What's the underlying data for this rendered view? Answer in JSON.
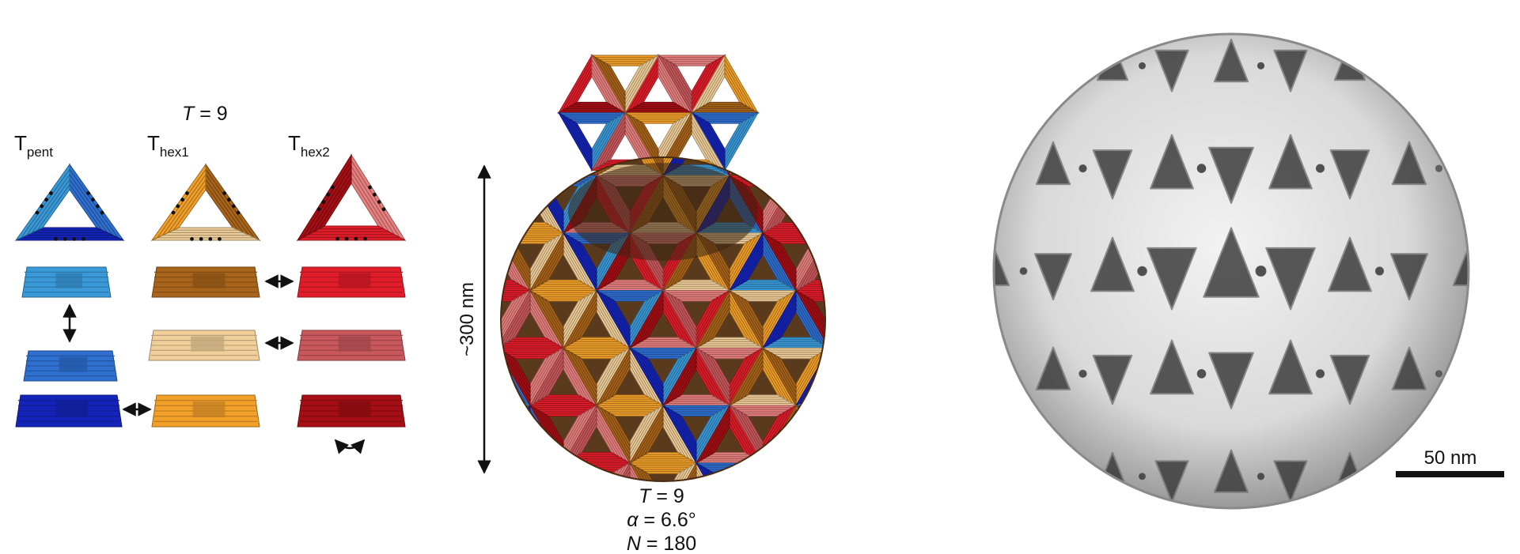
{
  "left_panel": {
    "title_var": "T",
    "title_eq": " = 9",
    "tiles": [
      {
        "main": "T",
        "sub": "pent"
      },
      {
        "main": "T",
        "sub": "hex1"
      },
      {
        "main": "T",
        "sub": "hex2"
      }
    ]
  },
  "middle_panel": {
    "size_label": "~300 nm",
    "params": [
      {
        "var": "T",
        "eq": " = 9"
      },
      {
        "var": "α",
        "eq": " = 6.6°"
      },
      {
        "var": "N",
        "eq": " = 180"
      }
    ]
  },
  "right_panel": {
    "scale_label": "50 nm"
  },
  "colors": {
    "blue_light": "#3a9ad9",
    "blue_mid": "#2f6fd0",
    "blue_dark": "#1424b8",
    "orange_dark": "#a8641a",
    "orange_light": "#f0cf9a",
    "orange": "#f2a02a",
    "red": "#e21d2a",
    "red_pink": "#e8807f",
    "red_dark": "#a40e14"
  }
}
